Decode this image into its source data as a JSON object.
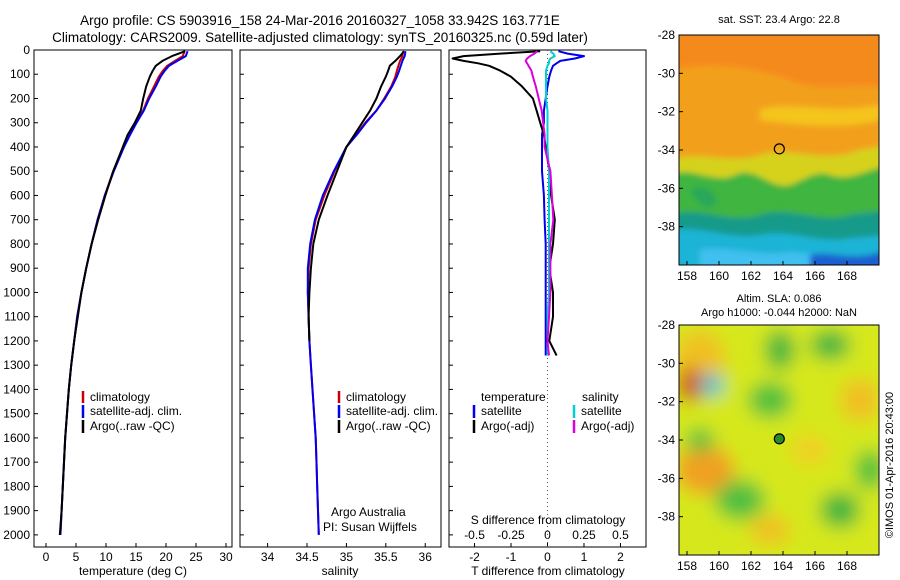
{
  "header": {
    "line1": "Argo profile: CS 5903916_158 24-Mar-2016 20160327_1058 33.942S 163.771E",
    "line2": "Climatology: CARS2009. Satellite-adjusted climatology: synTS_20160325.nc (0.59d later)"
  },
  "colors": {
    "climatology": "#cc0000",
    "satellite": "#0000ee",
    "argo": "#000000",
    "sat_salinity": "#00d0d0",
    "argo_salinity_diff": "#dd00dd"
  },
  "chart_data": [
    {
      "type": "line",
      "xlabel": "temperature (deg C)",
      "ylabel": "",
      "xlim": [
        -2,
        31
      ],
      "ylim": [
        2050,
        0
      ],
      "x_ticks": [
        "0",
        "5",
        "10",
        "15",
        "20",
        "25",
        "30"
      ],
      "y_ticks": [
        "0",
        "100",
        "200",
        "300",
        "400",
        "500",
        "600",
        "700",
        "800",
        "900",
        "1000",
        "1100",
        "1200",
        "1300",
        "1400",
        "1500",
        "1600",
        "1700",
        "1800",
        "1900",
        "2000"
      ],
      "depth": [
        5,
        25,
        45,
        65,
        85,
        110,
        150,
        200,
        250,
        300,
        350,
        400,
        500,
        600,
        700,
        800,
        900,
        1000,
        1100,
        1200,
        1300,
        1400,
        1500,
        1600,
        1700,
        1800,
        1900,
        2000
      ],
      "series": [
        {
          "name": "climatology",
          "values": [
            23.1,
            22.8,
            21.5,
            20.2,
            19.5,
            18.8,
            18.0,
            17.0,
            16.2,
            15.0,
            13.9,
            12.9,
            11.2,
            9.8,
            8.6,
            7.6,
            6.7,
            5.9,
            5.2,
            4.7,
            4.2,
            3.8,
            3.5,
            3.2,
            3.0,
            2.8,
            2.6,
            2.4
          ]
        },
        {
          "name": "satellite-adj. clim.",
          "values": [
            23.6,
            23.3,
            21.9,
            20.5,
            19.8,
            19.1,
            18.3,
            17.2,
            16.3,
            15.1,
            14.0,
            13.0,
            11.3,
            9.8,
            8.6,
            7.6,
            6.7,
            5.9,
            5.2,
            4.7,
            4.2,
            3.8,
            3.5,
            3.2,
            3.0,
            2.8,
            2.6,
            2.4
          ]
        },
        {
          "name": "Argo(..raw -QC)",
          "values": [
            23.2,
            21.0,
            19.4,
            18.3,
            17.8,
            17.3,
            16.7,
            16.2,
            15.8,
            14.8,
            13.6,
            12.8,
            11.2,
            9.9,
            8.7,
            7.6,
            6.7,
            5.9,
            5.3,
            4.7,
            4.2,
            3.8,
            3.5,
            3.2,
            3.0,
            2.8,
            2.6,
            2.3
          ]
        }
      ],
      "legend": [
        "climatology",
        "satellite-adj. clim.",
        "Argo(..raw -QC)"
      ]
    },
    {
      "type": "line",
      "xlabel": "salinity",
      "xlim": [
        33.65,
        36.2
      ],
      "ylim": [
        2050,
        0
      ],
      "x_ticks": [
        "34",
        "34.5",
        "35",
        "35.5",
        "36"
      ],
      "depth": [
        5,
        25,
        45,
        65,
        85,
        110,
        150,
        200,
        250,
        300,
        350,
        400,
        500,
        600,
        700,
        800,
        900,
        1000,
        1100,
        1200,
        1300,
        1400,
        1500,
        1600,
        1700,
        1800,
        1900,
        2000
      ],
      "series": [
        {
          "name": "climatology",
          "values": [
            35.72,
            35.71,
            35.68,
            35.66,
            35.64,
            35.62,
            35.57,
            35.48,
            35.38,
            35.24,
            35.12,
            35.0,
            34.85,
            34.72,
            34.61,
            34.55,
            34.52,
            34.51,
            34.52,
            34.53,
            34.55,
            34.57,
            34.59,
            34.61,
            34.62,
            34.63,
            34.64,
            34.65
          ]
        },
        {
          "name": "satellite-adj. clim.",
          "values": [
            35.75,
            35.74,
            35.71,
            35.69,
            35.67,
            35.64,
            35.58,
            35.49,
            35.38,
            35.25,
            35.13,
            35.0,
            34.84,
            34.7,
            34.6,
            34.54,
            34.51,
            34.51,
            34.52,
            34.53,
            34.55,
            34.57,
            34.59,
            34.61,
            34.62,
            34.63,
            34.64,
            34.65
          ]
        },
        {
          "name": "Argo(..raw -QC)",
          "values": [
            35.73,
            35.68,
            35.62,
            35.55,
            35.53,
            35.5,
            35.44,
            35.38,
            35.3,
            35.2,
            35.1,
            35.0,
            34.88,
            34.76,
            34.65,
            34.58,
            34.55,
            34.53,
            34.52,
            34.53,
            null,
            null,
            null,
            null,
            null,
            null,
            null,
            null
          ]
        }
      ],
      "legend": [
        "climatology",
        "satellite-adj. clim.",
        "Argo(..raw -QC)"
      ],
      "annotation": [
        "Argo Australia",
        "PI: Susan Wijffels"
      ]
    },
    {
      "type": "line",
      "xlabel": "T difference from climatology",
      "xlabel_top": "S difference from climatology",
      "xlim": [
        -2.7,
        2.7
      ],
      "ylim": [
        2050,
        0
      ],
      "x_ticks": [
        "-2",
        "-1",
        "0",
        "1",
        "2"
      ],
      "x_ticks_top": [
        "-0.5",
        "-0.25",
        "0",
        "0.25",
        "0.5"
      ],
      "depth": [
        5,
        15,
        25,
        35,
        45,
        55,
        65,
        85,
        110,
        150,
        200,
        250,
        300,
        350,
        400,
        500,
        600,
        700,
        800,
        900,
        1000,
        1100,
        1200,
        1260
      ],
      "series": [
        {
          "name": "temperature satellite",
          "values": [
            0.3,
            0.55,
            1.0,
            0.75,
            0.35,
            0.25,
            0.15,
            0.1,
            0.05,
            0.0,
            -0.05,
            -0.1,
            -0.1,
            -0.15,
            -0.15,
            -0.15,
            -0.1,
            -0.08,
            -0.05,
            -0.05,
            -0.05,
            -0.05,
            -0.05,
            -0.05
          ]
        },
        {
          "name": "temperature Argo(-adj)",
          "values": [
            -0.2,
            -1.3,
            -2.3,
            -2.6,
            -2.3,
            -1.9,
            -1.6,
            -1.3,
            -1.0,
            -0.7,
            -0.4,
            -0.3,
            -0.2,
            -0.1,
            -0.05,
            0.05,
            0.1,
            0.2,
            0.15,
            0.05,
            0.15,
            0.15,
            0.05,
            0.25
          ]
        },
        {
          "name": "salinity satellite",
          "values": [
            0.02,
            0.04,
            0.05,
            0.02,
            0.01,
            0.01,
            0.0,
            -0.01,
            -0.01,
            -0.01,
            -0.01,
            0.0,
            0.0,
            0.0,
            0.0,
            0.01,
            0.01,
            0.01,
            0.01,
            0.01,
            0.01,
            0.0,
            0.0,
            0.0
          ]
        },
        {
          "name": "salinity Argo(-adj)",
          "values": [
            -0.07,
            -0.09,
            -0.12,
            -0.14,
            -0.15,
            -0.14,
            -0.13,
            -0.11,
            -0.1,
            -0.08,
            -0.06,
            -0.04,
            -0.03,
            -0.02,
            -0.02,
            0.02,
            0.03,
            0.04,
            0.02,
            0.02,
            0.02,
            0.01,
            0.0,
            0.01
          ]
        }
      ],
      "legend": {
        "temperature_title": "temperature",
        "salinity_title": "salinity",
        "entries": [
          "satellite",
          "Argo(-adj)",
          "satellite",
          "Argo(-adj)"
        ]
      }
    },
    {
      "type": "heatmap",
      "title": "sat. SST: 23.4  Argo: 22.8",
      "x_ticks": [
        "158",
        "160",
        "162",
        "164",
        "166",
        "168"
      ],
      "y_ticks": [
        "-28",
        "-30",
        "-32",
        "-34",
        "-36",
        "-38"
      ],
      "xlim": [
        157.5,
        170
      ],
      "ylim": [
        -40,
        -28
      ],
      "marker": {
        "lon": 163.77,
        "lat": -33.94
      }
    },
    {
      "type": "heatmap",
      "title": "Altim. SLA: 0.086",
      "subtitle": "Argo h1000: -0.044  h2000: NaN",
      "x_ticks": [
        "158",
        "160",
        "162",
        "164",
        "166",
        "168"
      ],
      "y_ticks": [
        "-28",
        "-30",
        "-32",
        "-34",
        "-36",
        "-38"
      ],
      "xlim": [
        157.5,
        170
      ],
      "ylim": [
        -40,
        -28
      ],
      "marker": {
        "lon": 163.77,
        "lat": -33.94
      },
      "credit": "©IMOS 01-Apr-2016 20:43:00"
    }
  ]
}
